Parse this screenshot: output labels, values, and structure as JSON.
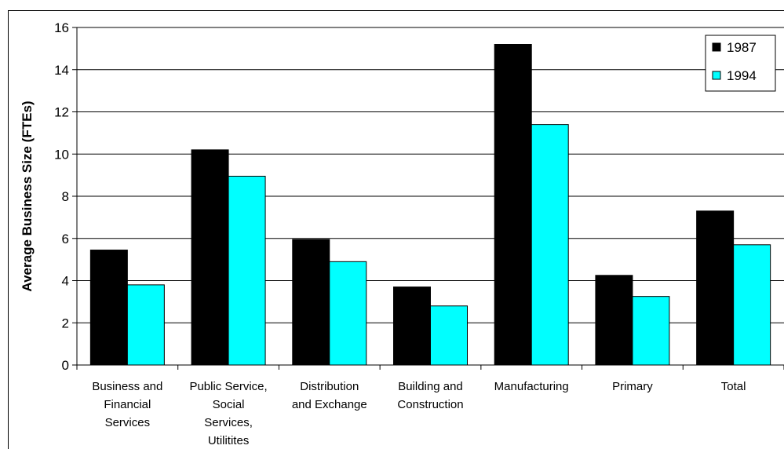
{
  "chart_data": {
    "type": "bar",
    "title": "",
    "xlabel": "",
    "ylabel": "Average Business Size (FTEs)",
    "ylim": [
      0,
      16
    ],
    "yticks": [
      0,
      2,
      4,
      6,
      8,
      10,
      12,
      14,
      16
    ],
    "grid": true,
    "legend_position": "top-right",
    "categories": [
      [
        "Business and",
        "Financial",
        "Services"
      ],
      [
        "Public Service,",
        "Social",
        "Services,",
        "Utilitites"
      ],
      [
        "Distribution",
        "and Exchange"
      ],
      [
        "Building and",
        "Construction"
      ],
      [
        "Manufacturing"
      ],
      [
        "Primary"
      ],
      [
        "Total"
      ]
    ],
    "series": [
      {
        "name": "1987",
        "color": "#000000",
        "values": [
          5.45,
          10.2,
          5.95,
          3.7,
          15.2,
          4.25,
          7.3
        ]
      },
      {
        "name": "1994",
        "color": "#00ffff",
        "values": [
          3.8,
          8.95,
          4.9,
          2.8,
          11.4,
          3.25,
          5.7
        ]
      }
    ]
  }
}
